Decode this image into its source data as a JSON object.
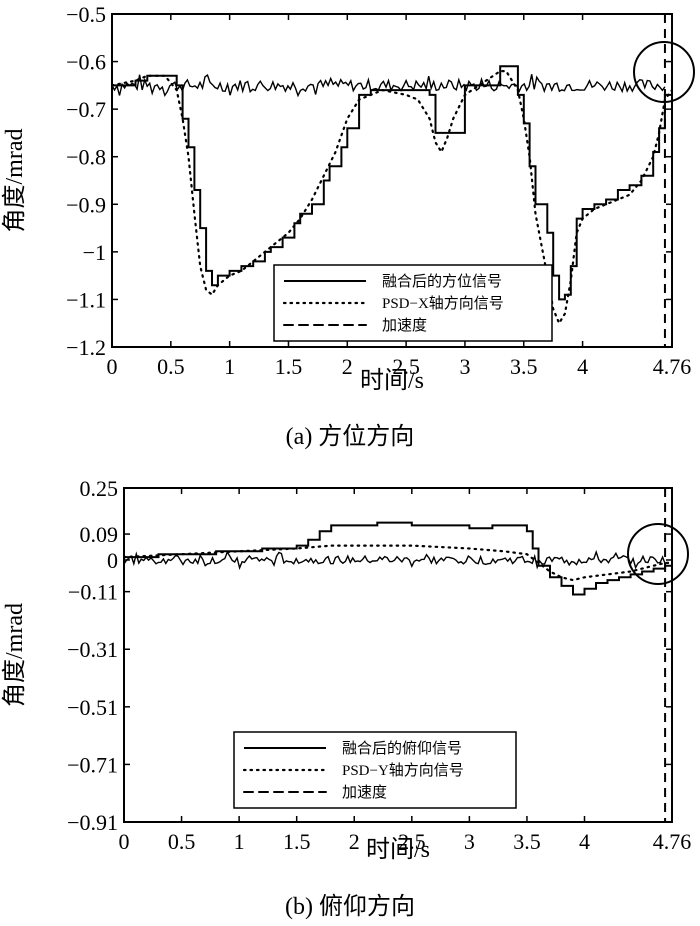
{
  "chart_data": [
    {
      "type": "line",
      "caption": "(a) 方位方向",
      "xlabel": "时间/s",
      "ylabel": "角度/mrad",
      "xlim": [
        0,
        4.76
      ],
      "ylim": [
        -1.2,
        -0.5
      ],
      "xticks": [
        0,
        0.5,
        1,
        1.5,
        2,
        2.5,
        3,
        3.5,
        4,
        4.76
      ],
      "xtick_labels": [
        "0",
        "0.5",
        "1",
        "1.5",
        "2",
        "2.5",
        "3",
        "3.5",
        "4",
        "4.76"
      ],
      "yticks": [
        -0.5,
        -0.6,
        -0.7,
        -0.8,
        -0.9,
        -1.0,
        -1.1,
        -1.2
      ],
      "ytick_labels": [
        "−0.5",
        "−0.6",
        "−0.7",
        "−0.8",
        "−0.9",
        "−1",
        "−1.1",
        "−1.2"
      ],
      "legend_position": "lower-right",
      "series": [
        {
          "name": "融合后的方位信号",
          "style": "solid",
          "mode": "step",
          "x": [
            0,
            0.2,
            0.3,
            0.45,
            0.55,
            0.6,
            0.65,
            0.7,
            0.75,
            0.8,
            0.85,
            0.9,
            1.0,
            1.1,
            1.2,
            1.3,
            1.35,
            1.45,
            1.55,
            1.6,
            1.7,
            1.8,
            1.85,
            1.95,
            2.0,
            2.1,
            2.2,
            2.3,
            2.5,
            2.6,
            2.7,
            2.75,
            2.9,
            3.0,
            3.3,
            3.35,
            3.45,
            3.5,
            3.55,
            3.6,
            3.7,
            3.75,
            3.8,
            3.85,
            3.9,
            3.95,
            4.0,
            4.1,
            4.2,
            4.3,
            4.4,
            4.5,
            4.6,
            4.65,
            4.7,
            4.76
          ],
          "y": [
            -0.65,
            -0.64,
            -0.63,
            -0.63,
            -0.65,
            -0.72,
            -0.78,
            -0.87,
            -0.95,
            -1.04,
            -1.07,
            -1.05,
            -1.04,
            -1.03,
            -1.02,
            -1.0,
            -0.99,
            -0.97,
            -0.94,
            -0.92,
            -0.9,
            -0.85,
            -0.82,
            -0.78,
            -0.74,
            -0.67,
            -0.66,
            -0.66,
            -0.66,
            -0.66,
            -0.67,
            -0.75,
            -0.75,
            -0.65,
            -0.61,
            -0.61,
            -0.67,
            -0.73,
            -0.82,
            -0.9,
            -0.96,
            -1.05,
            -1.1,
            -1.09,
            -1.03,
            -0.93,
            -0.91,
            -0.9,
            -0.89,
            -0.87,
            -0.86,
            -0.84,
            -0.79,
            -0.74,
            -0.67,
            -0.66
          ]
        },
        {
          "name": "PSD−X轴方向信号",
          "style": "dotted",
          "mode": "line",
          "x": [
            0,
            0.2,
            0.3,
            0.45,
            0.55,
            0.6,
            0.65,
            0.7,
            0.75,
            0.8,
            0.85,
            0.9,
            1.0,
            1.1,
            1.2,
            1.3,
            1.4,
            1.5,
            1.6,
            1.7,
            1.8,
            1.9,
            2.0,
            2.1,
            2.2,
            2.3,
            2.5,
            2.6,
            2.7,
            2.75,
            2.8,
            2.85,
            2.9,
            3.0,
            3.3,
            3.35,
            3.45,
            3.5,
            3.55,
            3.6,
            3.7,
            3.75,
            3.8,
            3.85,
            3.9,
            3.95,
            4.0,
            4.1,
            4.2,
            4.3,
            4.4,
            4.5,
            4.6,
            4.65,
            4.7,
            4.76
          ],
          "y": [
            -0.65,
            -0.64,
            -0.63,
            -0.63,
            -0.66,
            -0.72,
            -0.8,
            -0.92,
            -1.03,
            -1.08,
            -1.09,
            -1.07,
            -1.05,
            -1.04,
            -1.02,
            -1.0,
            -0.98,
            -0.96,
            -0.93,
            -0.89,
            -0.84,
            -0.79,
            -0.72,
            -0.68,
            -0.67,
            -0.66,
            -0.67,
            -0.68,
            -0.72,
            -0.77,
            -0.79,
            -0.76,
            -0.72,
            -0.67,
            -0.62,
            -0.62,
            -0.66,
            -0.72,
            -0.8,
            -0.92,
            -1.05,
            -1.12,
            -1.15,
            -1.13,
            -1.06,
            -0.96,
            -0.93,
            -0.91,
            -0.9,
            -0.89,
            -0.88,
            -0.85,
            -0.8,
            -0.75,
            -0.68,
            -0.66
          ]
        },
        {
          "name": "加速度",
          "style": "dashed",
          "mode": "noise",
          "x": [
            0,
            4.7
          ],
          "y": [
            -0.65,
            -0.65
          ],
          "note_x": 4.7
        }
      ]
    },
    {
      "type": "line",
      "caption": "(b) 俯仰方向",
      "xlabel": "时间/s",
      "ylabel": "角度/mrad",
      "xlim": [
        0,
        4.76
      ],
      "ylim": [
        -0.91,
        0.25
      ],
      "xticks": [
        0,
        0.5,
        1,
        1.5,
        2,
        2.5,
        3,
        3.5,
        4,
        4.76
      ],
      "xtick_labels": [
        "0",
        "0.5",
        "1",
        "1.5",
        "2",
        "2.5",
        "3",
        "3.5",
        "4",
        "4.76"
      ],
      "yticks": [
        0.25,
        0.09,
        0,
        -0.11,
        -0.31,
        -0.51,
        -0.71,
        -0.91
      ],
      "ytick_labels": [
        "0.25",
        "0.09",
        "0",
        "−0.11",
        "−0.31",
        "−0.51",
        "−0.71",
        "−0.91"
      ],
      "legend_position": "lower-left",
      "series": [
        {
          "name": "融合后的俯仰信号",
          "style": "solid",
          "mode": "step",
          "x": [
            0,
            0.3,
            0.5,
            0.8,
            1.0,
            1.2,
            1.4,
            1.5,
            1.6,
            1.7,
            1.8,
            1.9,
            2.0,
            2.2,
            2.5,
            2.8,
            3.0,
            3.2,
            3.4,
            3.5,
            3.55,
            3.6,
            3.7,
            3.8,
            3.9,
            4.0,
            4.1,
            4.2,
            4.3,
            4.4,
            4.5,
            4.6,
            4.7,
            4.76
          ],
          "y": [
            0.01,
            0.02,
            0.02,
            0.03,
            0.03,
            0.04,
            0.04,
            0.05,
            0.07,
            0.1,
            0.12,
            0.12,
            0.12,
            0.13,
            0.12,
            0.12,
            0.11,
            0.12,
            0.12,
            0.1,
            0.04,
            -0.02,
            -0.06,
            -0.09,
            -0.12,
            -0.1,
            -0.08,
            -0.07,
            -0.06,
            -0.05,
            -0.04,
            -0.03,
            -0.02,
            -0.02
          ]
        },
        {
          "name": "PSD−Y轴方向信号",
          "style": "dotted",
          "mode": "line",
          "x": [
            0,
            0.5,
            1.0,
            1.5,
            1.8,
            2.0,
            2.5,
            3.0,
            3.3,
            3.5,
            3.6,
            3.7,
            3.8,
            3.9,
            4.0,
            4.2,
            4.4,
            4.5,
            4.6,
            4.7,
            4.76
          ],
          "y": [
            0.01,
            0.02,
            0.03,
            0.04,
            0.05,
            0.05,
            0.05,
            0.04,
            0.03,
            0.02,
            -0.01,
            -0.04,
            -0.06,
            -0.07,
            -0.06,
            -0.05,
            -0.04,
            -0.03,
            -0.02,
            -0.01,
            -0.01
          ]
        },
        {
          "name": "加速度",
          "style": "dashed",
          "mode": "noise",
          "x": [
            0,
            4.7
          ],
          "y": [
            0.0,
            0.0
          ],
          "note_x": 4.7
        }
      ]
    }
  ]
}
